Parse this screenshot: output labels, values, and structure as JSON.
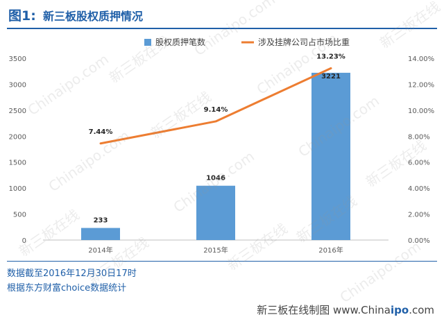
{
  "title": {
    "prefix": "图1",
    "separator": ":",
    "text": "新三板股权质押情况"
  },
  "notes": {
    "line1": "数据截至2016年12月30日17时",
    "line2": "根据东方财富choice数据统计"
  },
  "credit": {
    "prefix": "新三板在线制图  www.China",
    "bold": "ipo",
    "suffix": ".com"
  },
  "watermark": {
    "text_cn": "新三板在线",
    "text_en": "Chinaipo.com"
  },
  "colors": {
    "bar": "#5b9bd5",
    "line": "#ed7d31",
    "title": "#1f5fa8",
    "grid": "#d9d9d9"
  },
  "chart_data": {
    "type": "bar",
    "categories": [
      "2014年",
      "2015年",
      "2016年"
    ],
    "series": [
      {
        "name": "股权质押笔数",
        "type": "bar",
        "axis": "left",
        "values": [
          233,
          1046,
          3221
        ],
        "labels": [
          "233",
          "1046",
          "3221"
        ]
      },
      {
        "name": "涉及挂牌公司占市场比重",
        "type": "line",
        "axis": "right",
        "values": [
          7.44,
          9.14,
          13.23
        ],
        "labels": [
          "7.44%",
          "9.14%",
          "13.23%"
        ]
      }
    ],
    "y_left": {
      "min": 0,
      "max": 3500,
      "ticks": [
        "0",
        "500",
        "1000",
        "1500",
        "2000",
        "2500",
        "3000",
        "3500"
      ]
    },
    "y_right": {
      "min": 0,
      "max": 14,
      "ticks": [
        "0.00%",
        "2.00%",
        "4.00%",
        "6.00%",
        "8.00%",
        "10.00%",
        "12.00%",
        "14.00%"
      ]
    },
    "grid": false,
    "legend": "top"
  }
}
